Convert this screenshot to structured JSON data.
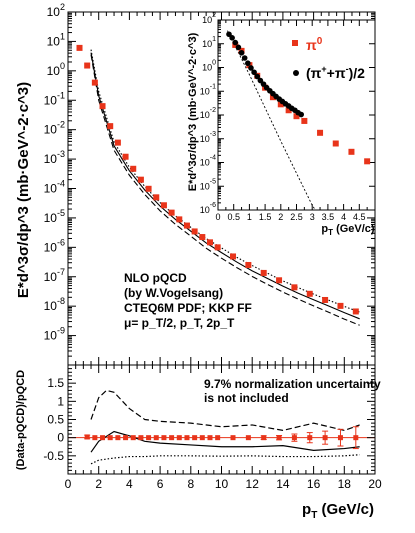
{
  "chart_data": [
    {
      "type": "scatter",
      "panel": "main",
      "title": "",
      "xlabel": "p_T (GeV/c)",
      "ylabel": "E*d^3σ/dp^3 (mb·GeV^-2·c^3)",
      "xlim": [
        0,
        20
      ],
      "ylim_log10": [
        -10,
        2
      ],
      "x_ticks": [
        0,
        2,
        4,
        6,
        8,
        10,
        12,
        14,
        16,
        18,
        20
      ],
      "y_tick_exponents": [
        -9,
        -8,
        -7,
        -6,
        -5,
        -4,
        -3,
        -2,
        -1,
        0,
        1,
        2
      ],
      "annotations": [
        "NLO pQCD",
        "(by W.Vogelsang)",
        "CTEQ6M PDF; KKP FF",
        "μ= p_T/2, p_T, 2p_T"
      ],
      "series": [
        {
          "name": "π0 data",
          "style": "red squares",
          "x": [
            0.75,
            1.25,
            1.75,
            2.25,
            2.75,
            3.25,
            3.75,
            4.25,
            4.75,
            5.25,
            5.75,
            6.25,
            6.75,
            7.25,
            7.75,
            8.25,
            8.75,
            9.25,
            9.75,
            10.75,
            11.75,
            12.75,
            13.75,
            14.75,
            15.75,
            16.75,
            17.75,
            18.75
          ],
          "y_log10": [
            0.78,
            0.18,
            -0.4,
            -1.2,
            -1.88,
            -2.44,
            -2.92,
            -3.33,
            -3.7,
            -4.01,
            -4.3,
            -4.57,
            -4.82,
            -5.05,
            -5.26,
            -5.46,
            -5.65,
            -5.83,
            -6.0,
            -6.31,
            -6.6,
            -6.87,
            -7.12,
            -7.36,
            -7.58,
            -7.79,
            -7.99,
            -8.18
          ]
        },
        {
          "name": "NLO pQCD μ=p_T",
          "style": "solid",
          "x": [
            1.5,
            2,
            3,
            4,
            5,
            6,
            7,
            8,
            9,
            10,
            11,
            12,
            13,
            14,
            15,
            16,
            17,
            18,
            19
          ],
          "y_log10": [
            0.62,
            -0.85,
            -2.55,
            -3.4,
            -4.05,
            -4.6,
            -5.05,
            -5.45,
            -5.85,
            -6.18,
            -6.5,
            -6.8,
            -7.06,
            -7.32,
            -7.56,
            -7.78,
            -8.0,
            -8.22,
            -8.43
          ]
        },
        {
          "name": "NLO pQCD μ=p_T/2",
          "style": "dotted",
          "x": [
            1.5,
            2,
            3,
            4,
            5,
            6,
            7,
            8,
            9,
            10,
            11,
            12,
            13,
            14,
            15,
            16,
            17,
            18,
            19
          ],
          "y_log10": [
            0.72,
            -0.7,
            -2.42,
            -3.28,
            -3.93,
            -4.48,
            -4.93,
            -5.32,
            -5.7,
            -6.02,
            -6.34,
            -6.62,
            -6.88,
            -7.14,
            -7.37,
            -7.59,
            -7.8,
            -8.01,
            -8.2
          ]
        },
        {
          "name": "NLO pQCD μ=2p_T",
          "style": "dashed",
          "x": [
            1.5,
            2,
            3,
            4,
            5,
            6,
            7,
            8,
            9,
            10,
            11,
            12,
            13,
            14,
            15,
            16,
            17,
            18,
            19
          ],
          "y_log10": [
            0.55,
            -1.0,
            -2.7,
            -3.55,
            -4.2,
            -4.76,
            -5.22,
            -5.62,
            -6.03,
            -6.37,
            -6.69,
            -6.99,
            -7.26,
            -7.52,
            -7.76,
            -7.99,
            -8.21,
            -8.44,
            -8.65
          ]
        }
      ]
    },
    {
      "type": "scatter",
      "panel": "inset",
      "xlabel": "p_T (GeV/c)",
      "ylabel": "E*d^3σ/dp^3 (mb·GeV^-2·c^3)",
      "xlim": [
        0,
        5
      ],
      "ylim_log10": [
        -6,
        2
      ],
      "x_tick_labels": [
        "0",
        "0.5",
        "1",
        "1.5",
        "2",
        "2.5",
        "3",
        "3.5",
        "4",
        "4.5"
      ],
      "y_tick_exponents": [
        -6,
        -5,
        -4,
        -3,
        -2,
        -1,
        0,
        1,
        2
      ],
      "series": [
        {
          "name": "π0",
          "legend": "π",
          "legend_sup": "0",
          "style": "red squares",
          "x": [
            0.55,
            0.75,
            1.0,
            1.25,
            1.5,
            1.75,
            2.0,
            2.25,
            2.5,
            2.75,
            3.25,
            3.75,
            4.25,
            4.75
          ],
          "y_log10": [
            0.95,
            0.7,
            0.1,
            -0.35,
            -0.85,
            -1.25,
            -1.55,
            -1.8,
            -2.05,
            -2.25,
            -2.75,
            -3.2,
            -3.55,
            -3.95
          ]
        },
        {
          "name": "(π+ + π-)/2",
          "legend": "(π",
          "legend_sup": "+",
          "legend_mid": "+π",
          "legend_sup2": "-",
          "legend_end": ")/2",
          "style": "black circles",
          "x": [
            0.35,
            0.45,
            0.55,
            0.65,
            0.75,
            0.85,
            0.95,
            1.05,
            1.15,
            1.25,
            1.35,
            1.45,
            1.55,
            1.65,
            1.75,
            1.85,
            1.95,
            2.05,
            2.15,
            2.25,
            2.35,
            2.45,
            2.55,
            2.65
          ],
          "y_log10": [
            1.4,
            1.25,
            1.05,
            0.85,
            0.62,
            0.4,
            0.18,
            -0.02,
            -0.2,
            -0.38,
            -0.55,
            -0.7,
            -0.85,
            -0.98,
            -1.1,
            -1.22,
            -1.33,
            -1.43,
            -1.53,
            -1.62,
            -1.72,
            -1.8,
            -1.9,
            -1.98
          ]
        },
        {
          "name": "fit",
          "style": "dashed",
          "x": [
            0.3,
            1.0,
            2.0,
            3.0,
            3.1
          ],
          "y_log10": [
            1.55,
            -0.3,
            -3.1,
            -5.8,
            -6.0
          ]
        }
      ]
    },
    {
      "type": "scatter",
      "panel": "ratio",
      "xlabel": "p_T (GeV/c)",
      "ylabel": "(Data-pQCD)/pQCD",
      "xlim": [
        0,
        20
      ],
      "ylim": [
        -1,
        2
      ],
      "y_tick_labels": [
        "-0.5",
        "0",
        "0.5",
        "1",
        "1.5"
      ],
      "annotations": [
        "9.7% normalization uncertainty",
        "is not included"
      ],
      "series": [
        {
          "name": "ratio data",
          "style": "red squares",
          "x": [
            1.25,
            1.75,
            2.25,
            2.75,
            3.25,
            3.75,
            4.25,
            4.75,
            5.25,
            5.75,
            6.25,
            6.75,
            7.25,
            7.75,
            8.25,
            8.75,
            9.25,
            9.75,
            10.75,
            11.75,
            12.75,
            13.75,
            14.75,
            15.75,
            16.75,
            17.75,
            18.75
          ],
          "y": [
            0.02,
            0.0,
            0.0,
            0.0,
            0.0,
            0.0,
            0.0,
            0.0,
            0.0,
            0.0,
            0.0,
            0.0,
            0.0,
            0.0,
            0.0,
            0.0,
            0.0,
            0.0,
            0.0,
            0.0,
            0.0,
            0.0,
            0.0,
            0.0,
            0.0,
            0.0,
            0.0
          ],
          "yerr": [
            0.05,
            0.03,
            0.03,
            0.03,
            0.03,
            0.03,
            0.03,
            0.03,
            0.03,
            0.03,
            0.03,
            0.03,
            0.03,
            0.03,
            0.03,
            0.03,
            0.03,
            0.03,
            0.03,
            0.04,
            0.05,
            0.06,
            0.1,
            0.14,
            0.18,
            0.23,
            0.3
          ]
        },
        {
          "name": "μ=p_T",
          "style": "solid",
          "x": [
            1.5,
            2,
            3,
            4,
            5,
            6,
            8,
            10,
            12,
            14,
            16,
            18,
            19
          ],
          "y": [
            -0.4,
            -0.1,
            0.17,
            0.05,
            -0.1,
            -0.15,
            -0.2,
            -0.25,
            -0.25,
            -0.22,
            -0.35,
            -0.3,
            -0.25
          ]
        },
        {
          "name": "μ=2p_T",
          "style": "dashed",
          "x": [
            1.5,
            2,
            2.5,
            3,
            4,
            5,
            6,
            8,
            10,
            12,
            14,
            16,
            18,
            19
          ],
          "y": [
            0.5,
            1.1,
            1.3,
            1.25,
            0.8,
            0.5,
            0.45,
            0.4,
            0.3,
            0.35,
            0.2,
            0.4,
            0.2,
            0.35
          ]
        },
        {
          "name": "μ=p_T/2",
          "style": "dotted",
          "x": [
            1.5,
            2,
            3,
            4,
            5,
            6,
            8,
            10,
            12,
            14,
            16,
            18,
            19
          ],
          "y": [
            -0.72,
            -0.62,
            -0.56,
            -0.52,
            -0.52,
            -0.5,
            -0.5,
            -0.51,
            -0.5,
            -0.52,
            -0.52,
            -0.5,
            -0.47
          ]
        }
      ]
    }
  ]
}
